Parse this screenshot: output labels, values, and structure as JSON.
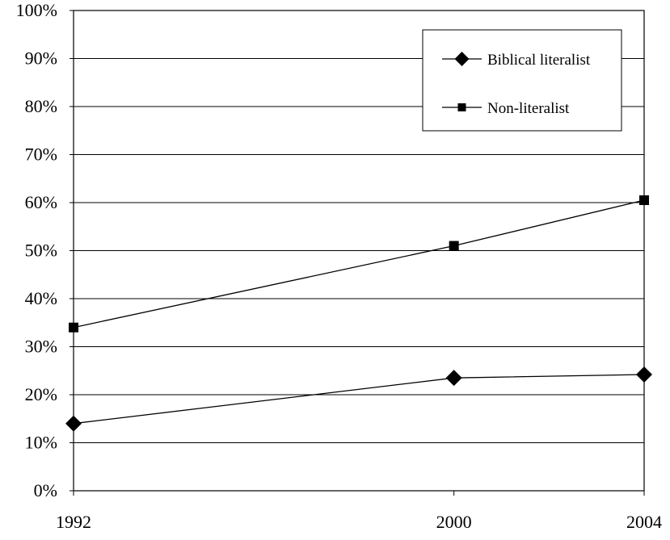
{
  "chart_data": {
    "type": "line",
    "title": "",
    "xlabel": "",
    "ylabel": "",
    "categories": [
      "1992",
      "2000",
      "2004"
    ],
    "x": [
      1992,
      2000,
      2004
    ],
    "xlim": [
      1992,
      2004
    ],
    "ylim": [
      0,
      100
    ],
    "ytick_values": [
      0,
      10,
      20,
      30,
      40,
      50,
      60,
      70,
      80,
      90,
      100
    ],
    "ytick_labels": [
      "0%",
      "10%",
      "20%",
      "30%",
      "40%",
      "50%",
      "60%",
      "70%",
      "80%",
      "90%",
      "100%"
    ],
    "grid": "horizontal",
    "legend_position": "top-right",
    "series": [
      {
        "name": "Biblical literalist",
        "marker": "diamond",
        "values": [
          14,
          23.5,
          24.2
        ]
      },
      {
        "name": "Non-literalist",
        "marker": "square",
        "values": [
          34,
          51,
          60.5
        ]
      }
    ],
    "colors": {
      "line": "#000000",
      "grid": "#000000",
      "background": "#ffffff"
    }
  }
}
